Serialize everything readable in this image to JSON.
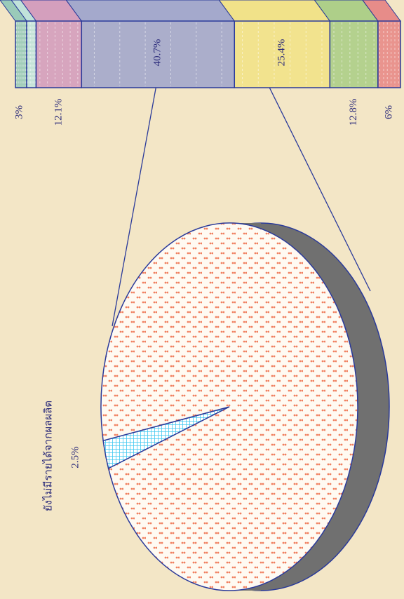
{
  "chart_data": {
    "type": "pie-of-bar",
    "bar": {
      "values": [
        3,
        2.5,
        12.1,
        40.7,
        25.4,
        12.8,
        6
      ],
      "value_labels": [
        "3%",
        null,
        "12.1%",
        "40.7%",
        "25.4%",
        "12.8%",
        "6%"
      ],
      "colors": [
        "#5fb8b0",
        "#9fe0e8",
        "#c070b8",
        "#7080d0",
        "#f0e060",
        "#80c060",
        "#e05060"
      ],
      "detail_index": 3
    },
    "pie": {
      "categories": [
        "ยังไม่มีรายได้จากผลผลิต",
        null
      ],
      "values": [
        2.5,
        97.5
      ],
      "value_labels": [
        "2.5%",
        null
      ],
      "colors": [
        "#40c8f0",
        "#f08060"
      ]
    }
  }
}
